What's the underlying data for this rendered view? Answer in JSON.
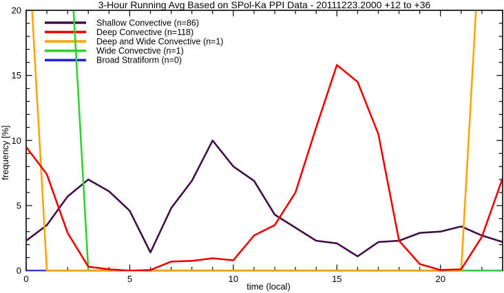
{
  "chart_data": {
    "type": "line",
    "title": "3-Hour Running Avg Based on SPol-Ka PPI Data - 20111223.2000 +12 to +36",
    "xlabel": "time (local)",
    "ylabel": "frequency [%]",
    "xlim": [
      0,
      23
    ],
    "ylim": [
      0,
      20
    ],
    "x_major_ticks": [
      0,
      5,
      10,
      15,
      20
    ],
    "y_major_ticks": [
      0,
      5,
      10,
      15,
      20
    ],
    "minor_tick_step": 1,
    "grid": false,
    "legend_position": "top-left-inside",
    "clip_to_ylim": true,
    "x": [
      0,
      1,
      2,
      3,
      4,
      5,
      6,
      7,
      8,
      9,
      10,
      11,
      12,
      13,
      14,
      15,
      16,
      17,
      18,
      19,
      20,
      21,
      22,
      23
    ],
    "series": [
      {
        "name": "Shallow Convective (n=86)",
        "color": "#400e44",
        "values": [
          2.3,
          3.5,
          5.7,
          7.0,
          6.1,
          4.6,
          1.4,
          4.8,
          6.9,
          10.0,
          8.0,
          6.9,
          4.3,
          3.3,
          2.3,
          2.1,
          1.1,
          2.2,
          2.3,
          2.9,
          3.0,
          3.4,
          2.7,
          2.2
        ]
      },
      {
        "name": "Deep Convective (n=118)",
        "color": "#ee0000",
        "values": [
          9.5,
          7.4,
          2.9,
          0.3,
          0.1,
          0.0,
          0.05,
          0.7,
          0.75,
          0.95,
          0.8,
          2.7,
          3.5,
          6.0,
          11.0,
          15.8,
          14.5,
          10.5,
          2.3,
          0.5,
          0.05,
          0.1,
          2.6,
          7.1
        ]
      },
      {
        "name": "Deep and Wide Convective (n=1)",
        "color": "#ffa500",
        "values": [
          28,
          0,
          0,
          0,
          0,
          0,
          0,
          0,
          0,
          0,
          0,
          0,
          0,
          0,
          0,
          0,
          0,
          0,
          0,
          0,
          0,
          0,
          28,
          28
        ]
      },
      {
        "name": "Wide Convective (n=1)",
        "color": "#2ed42e",
        "values": [
          28,
          28,
          28,
          0,
          0,
          0,
          0,
          0,
          0,
          0,
          0,
          0,
          0,
          0,
          0,
          0,
          0,
          0,
          0,
          0,
          0,
          0,
          0,
          0
        ]
      },
      {
        "name": "Broad Stratiform (n=0)",
        "color": "#2020dd",
        "values": [
          0,
          0,
          0,
          0,
          0,
          0,
          0,
          0,
          0,
          0,
          0,
          0,
          0,
          0,
          0,
          0,
          0,
          0,
          0,
          0,
          0,
          0,
          0,
          0
        ]
      }
    ]
  }
}
